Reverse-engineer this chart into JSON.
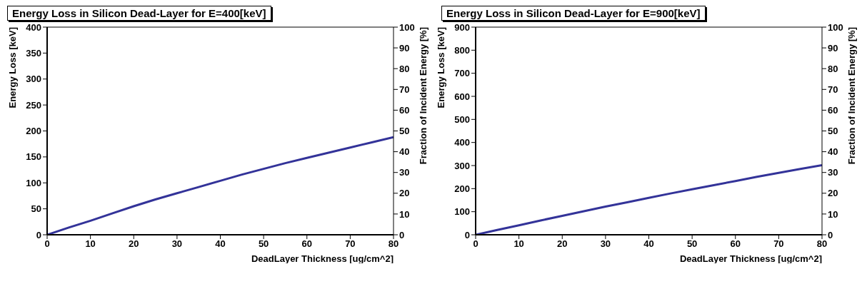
{
  "chart_data": [
    {
      "type": "line",
      "title": "Energy Loss in Silicon Dead-Layer for E=400[keV]",
      "xlabel": "DeadLayer Thickness [ug/cm^2]",
      "ylabel": "Energy Loss [keV]",
      "y2label": "Fraction of Incident Energy [%]",
      "x": [
        0,
        5,
        10,
        15,
        20,
        25,
        30,
        35,
        40,
        45,
        50,
        55,
        60,
        65,
        70,
        75,
        80
      ],
      "series": [
        {
          "color": "#333399",
          "values": [
            0,
            14,
            27,
            41,
            55,
            68,
            80,
            92,
            104,
            116,
            127,
            138,
            148,
            158,
            168,
            178,
            188
          ]
        }
      ],
      "xlim": [
        0,
        80
      ],
      "xticks": [
        0,
        10,
        20,
        30,
        40,
        50,
        60,
        70,
        80
      ],
      "ylim": [
        0,
        400
      ],
      "yticks": [
        0,
        50,
        100,
        150,
        200,
        250,
        300,
        350,
        400
      ],
      "y2lim": [
        0,
        100
      ],
      "y2ticks": [
        0,
        10,
        20,
        30,
        40,
        50,
        60,
        70,
        80,
        90,
        100
      ],
      "grid": false,
      "legend": false,
      "marker": "none",
      "line_style": "solid"
    },
    {
      "type": "line",
      "title": "Energy Loss in Silicon Dead-Layer for E=900[keV]",
      "xlabel": "DeadLayer Thickness [ug/cm^2]",
      "ylabel": "Energy Loss [keV]",
      "y2label": "Fraction of Incident Energy [%]",
      "x": [
        0,
        5,
        10,
        15,
        20,
        25,
        30,
        35,
        40,
        45,
        50,
        55,
        60,
        65,
        70,
        75,
        80
      ],
      "series": [
        {
          "color": "#333399",
          "values": [
            0,
            21,
            41,
            62,
            82,
            102,
            122,
            141,
            160,
            179,
            197,
            215,
            233,
            251,
            268,
            285,
            302
          ]
        }
      ],
      "xlim": [
        0,
        80
      ],
      "xticks": [
        0,
        10,
        20,
        30,
        40,
        50,
        60,
        70,
        80
      ],
      "ylim": [
        0,
        900
      ],
      "yticks": [
        0,
        100,
        200,
        300,
        400,
        500,
        600,
        700,
        800,
        900
      ],
      "y2lim": [
        0,
        100
      ],
      "y2ticks": [
        0,
        10,
        20,
        30,
        40,
        50,
        60,
        70,
        80,
        90,
        100
      ],
      "grid": false,
      "legend": false,
      "marker": "none",
      "line_style": "solid"
    }
  ]
}
